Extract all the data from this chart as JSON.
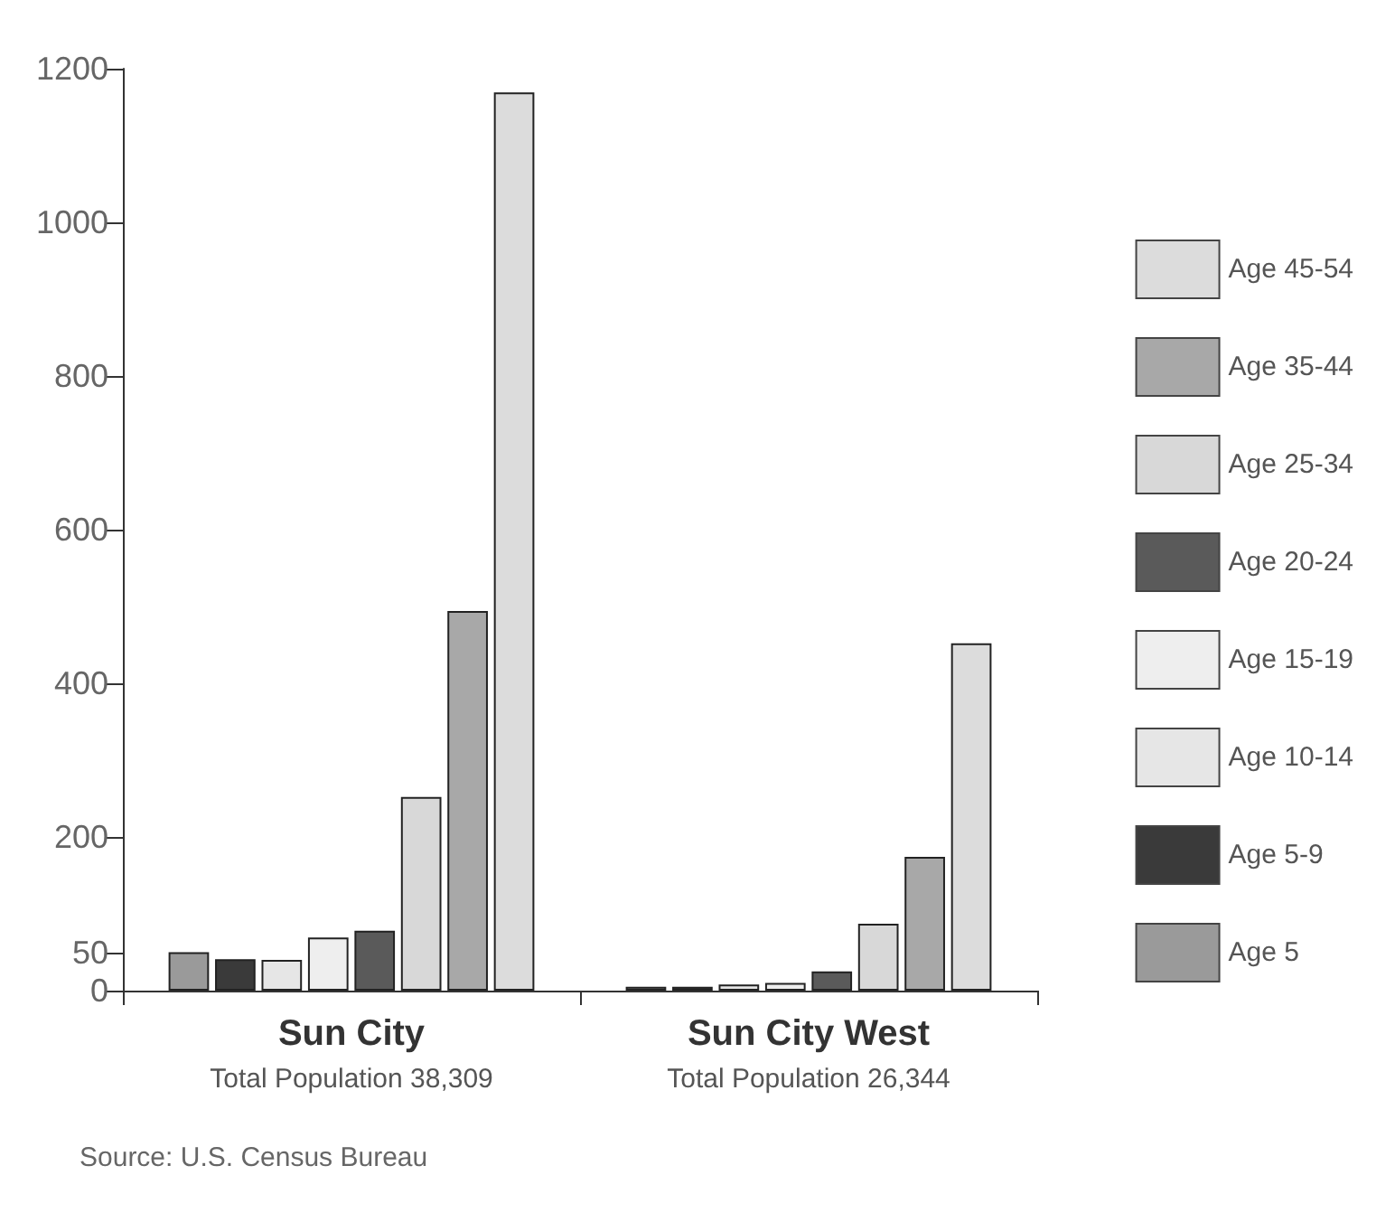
{
  "chart_data": {
    "type": "bar",
    "categories": [
      "Sun City",
      "Sun City West"
    ],
    "series": [
      {
        "name": "Age 5",
        "color": "#9a9a9a",
        "values": [
          50,
          5
        ]
      },
      {
        "name": "Age 5-9",
        "color": "#3a3a3a",
        "values": [
          41,
          5
        ]
      },
      {
        "name": "Age 10-14",
        "color": "#e6e6e6",
        "values": [
          40,
          8
        ]
      },
      {
        "name": "Age 15-19",
        "color": "#eeeeee",
        "values": [
          69,
          10
        ]
      },
      {
        "name": "Age 20-24",
        "color": "#5a5a5a",
        "values": [
          78,
          25
        ]
      },
      {
        "name": "Age 25-34",
        "color": "#d8d8d8",
        "values": [
          252,
          87
        ]
      },
      {
        "name": "Age 35-44",
        "color": "#a8a8a8",
        "values": [
          494,
          174
        ]
      },
      {
        "name": "Age 45-54",
        "color": "#dcdcdc",
        "values": [
          1169,
          452
        ]
      }
    ],
    "annotations": [
      "Total Population 38,309",
      "Total Population 26,344",
      "Source: U.S. Census Bureau"
    ],
    "ylim": [
      0,
      1200
    ],
    "yticks": [
      0,
      50,
      200,
      400,
      600,
      800,
      1000,
      1200
    ],
    "grid": false,
    "legend": "right"
  }
}
